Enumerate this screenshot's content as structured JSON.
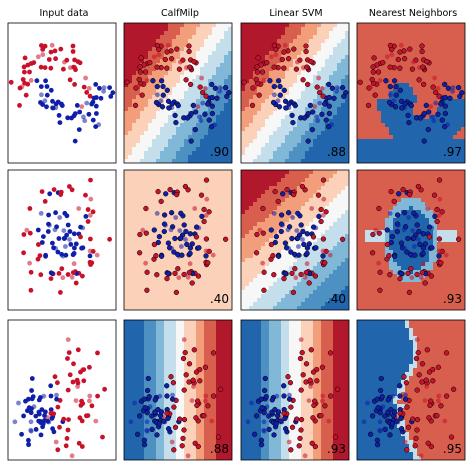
{
  "chart_data": {
    "type": "scatter",
    "columns": [
      "Input data",
      "CalfMilp",
      "Linear SVM",
      "Nearest Neighbors"
    ],
    "rows": [
      {
        "dataset": "moons",
        "scores": [
          "",
          ".90",
          ".88",
          ".97"
        ]
      },
      {
        "dataset": "circles",
        "scores": [
          "",
          ".40",
          ".40",
          ".93"
        ]
      },
      {
        "dataset": "linearly separable",
        "scores": [
          "",
          ".88",
          ".93",
          ".95"
        ]
      }
    ],
    "colors": {
      "class_0": "#c8112a",
      "class_1": "#0f1fa8",
      "map_red": "#b2182b",
      "map_blue": "#2166ac",
      "map_mid": "#f7f7f7"
    },
    "axes": {
      "ticks": false,
      "grid": false,
      "xlim": [
        -3,
        3
      ],
      "ylim": [
        -3,
        3
      ]
    }
  }
}
